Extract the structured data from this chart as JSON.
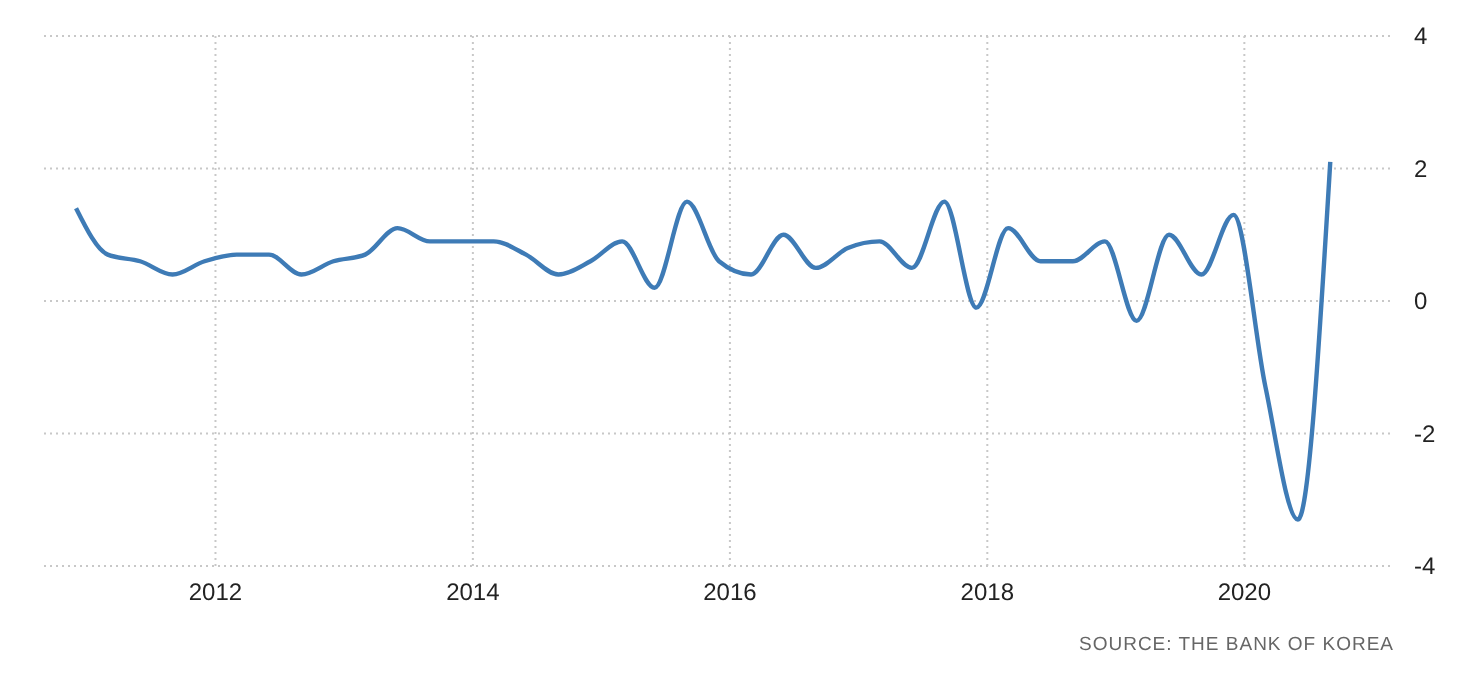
{
  "chart_data": {
    "type": "line",
    "x": [
      "2010-12",
      "2011-03",
      "2011-06",
      "2011-09",
      "2011-12",
      "2012-03",
      "2012-06",
      "2012-09",
      "2012-12",
      "2013-03",
      "2013-06",
      "2013-09",
      "2013-12",
      "2014-03",
      "2014-06",
      "2014-09",
      "2014-12",
      "2015-03",
      "2015-06",
      "2015-09",
      "2015-12",
      "2016-03",
      "2016-06",
      "2016-09",
      "2016-12",
      "2017-03",
      "2017-06",
      "2017-09",
      "2017-12",
      "2018-03",
      "2018-06",
      "2018-09",
      "2018-12",
      "2019-03",
      "2019-06",
      "2019-09",
      "2019-12",
      "2020-03",
      "2020-06",
      "2020-09"
    ],
    "series": [
      {
        "color": "#3e7bb6",
        "values": [
          1.4,
          0.7,
          0.6,
          0.4,
          0.6,
          0.7,
          0.7,
          0.4,
          0.6,
          0.7,
          1.1,
          0.9,
          0.9,
          0.9,
          0.7,
          0.4,
          0.6,
          0.9,
          0.2,
          1.5,
          0.6,
          0.4,
          1.0,
          0.5,
          0.8,
          0.9,
          0.5,
          1.5,
          -0.1,
          1.1,
          0.6,
          0.6,
          0.9,
          -0.3,
          1.0,
          0.4,
          1.3,
          -1.3,
          -3.3,
          2.1
        ]
      }
    ],
    "xlim": [
      "2010-09",
      "2021-03"
    ],
    "xticks": [
      "2012",
      "2014",
      "2016",
      "2018",
      "2020"
    ],
    "ylim": [
      -4,
      4
    ],
    "yticks": [
      -4,
      -2,
      0,
      2,
      4
    ],
    "grid": true,
    "marker": "none",
    "line_style": "solid",
    "annotations": [
      "SOURCE: THE BANK OF KOREA"
    ]
  }
}
